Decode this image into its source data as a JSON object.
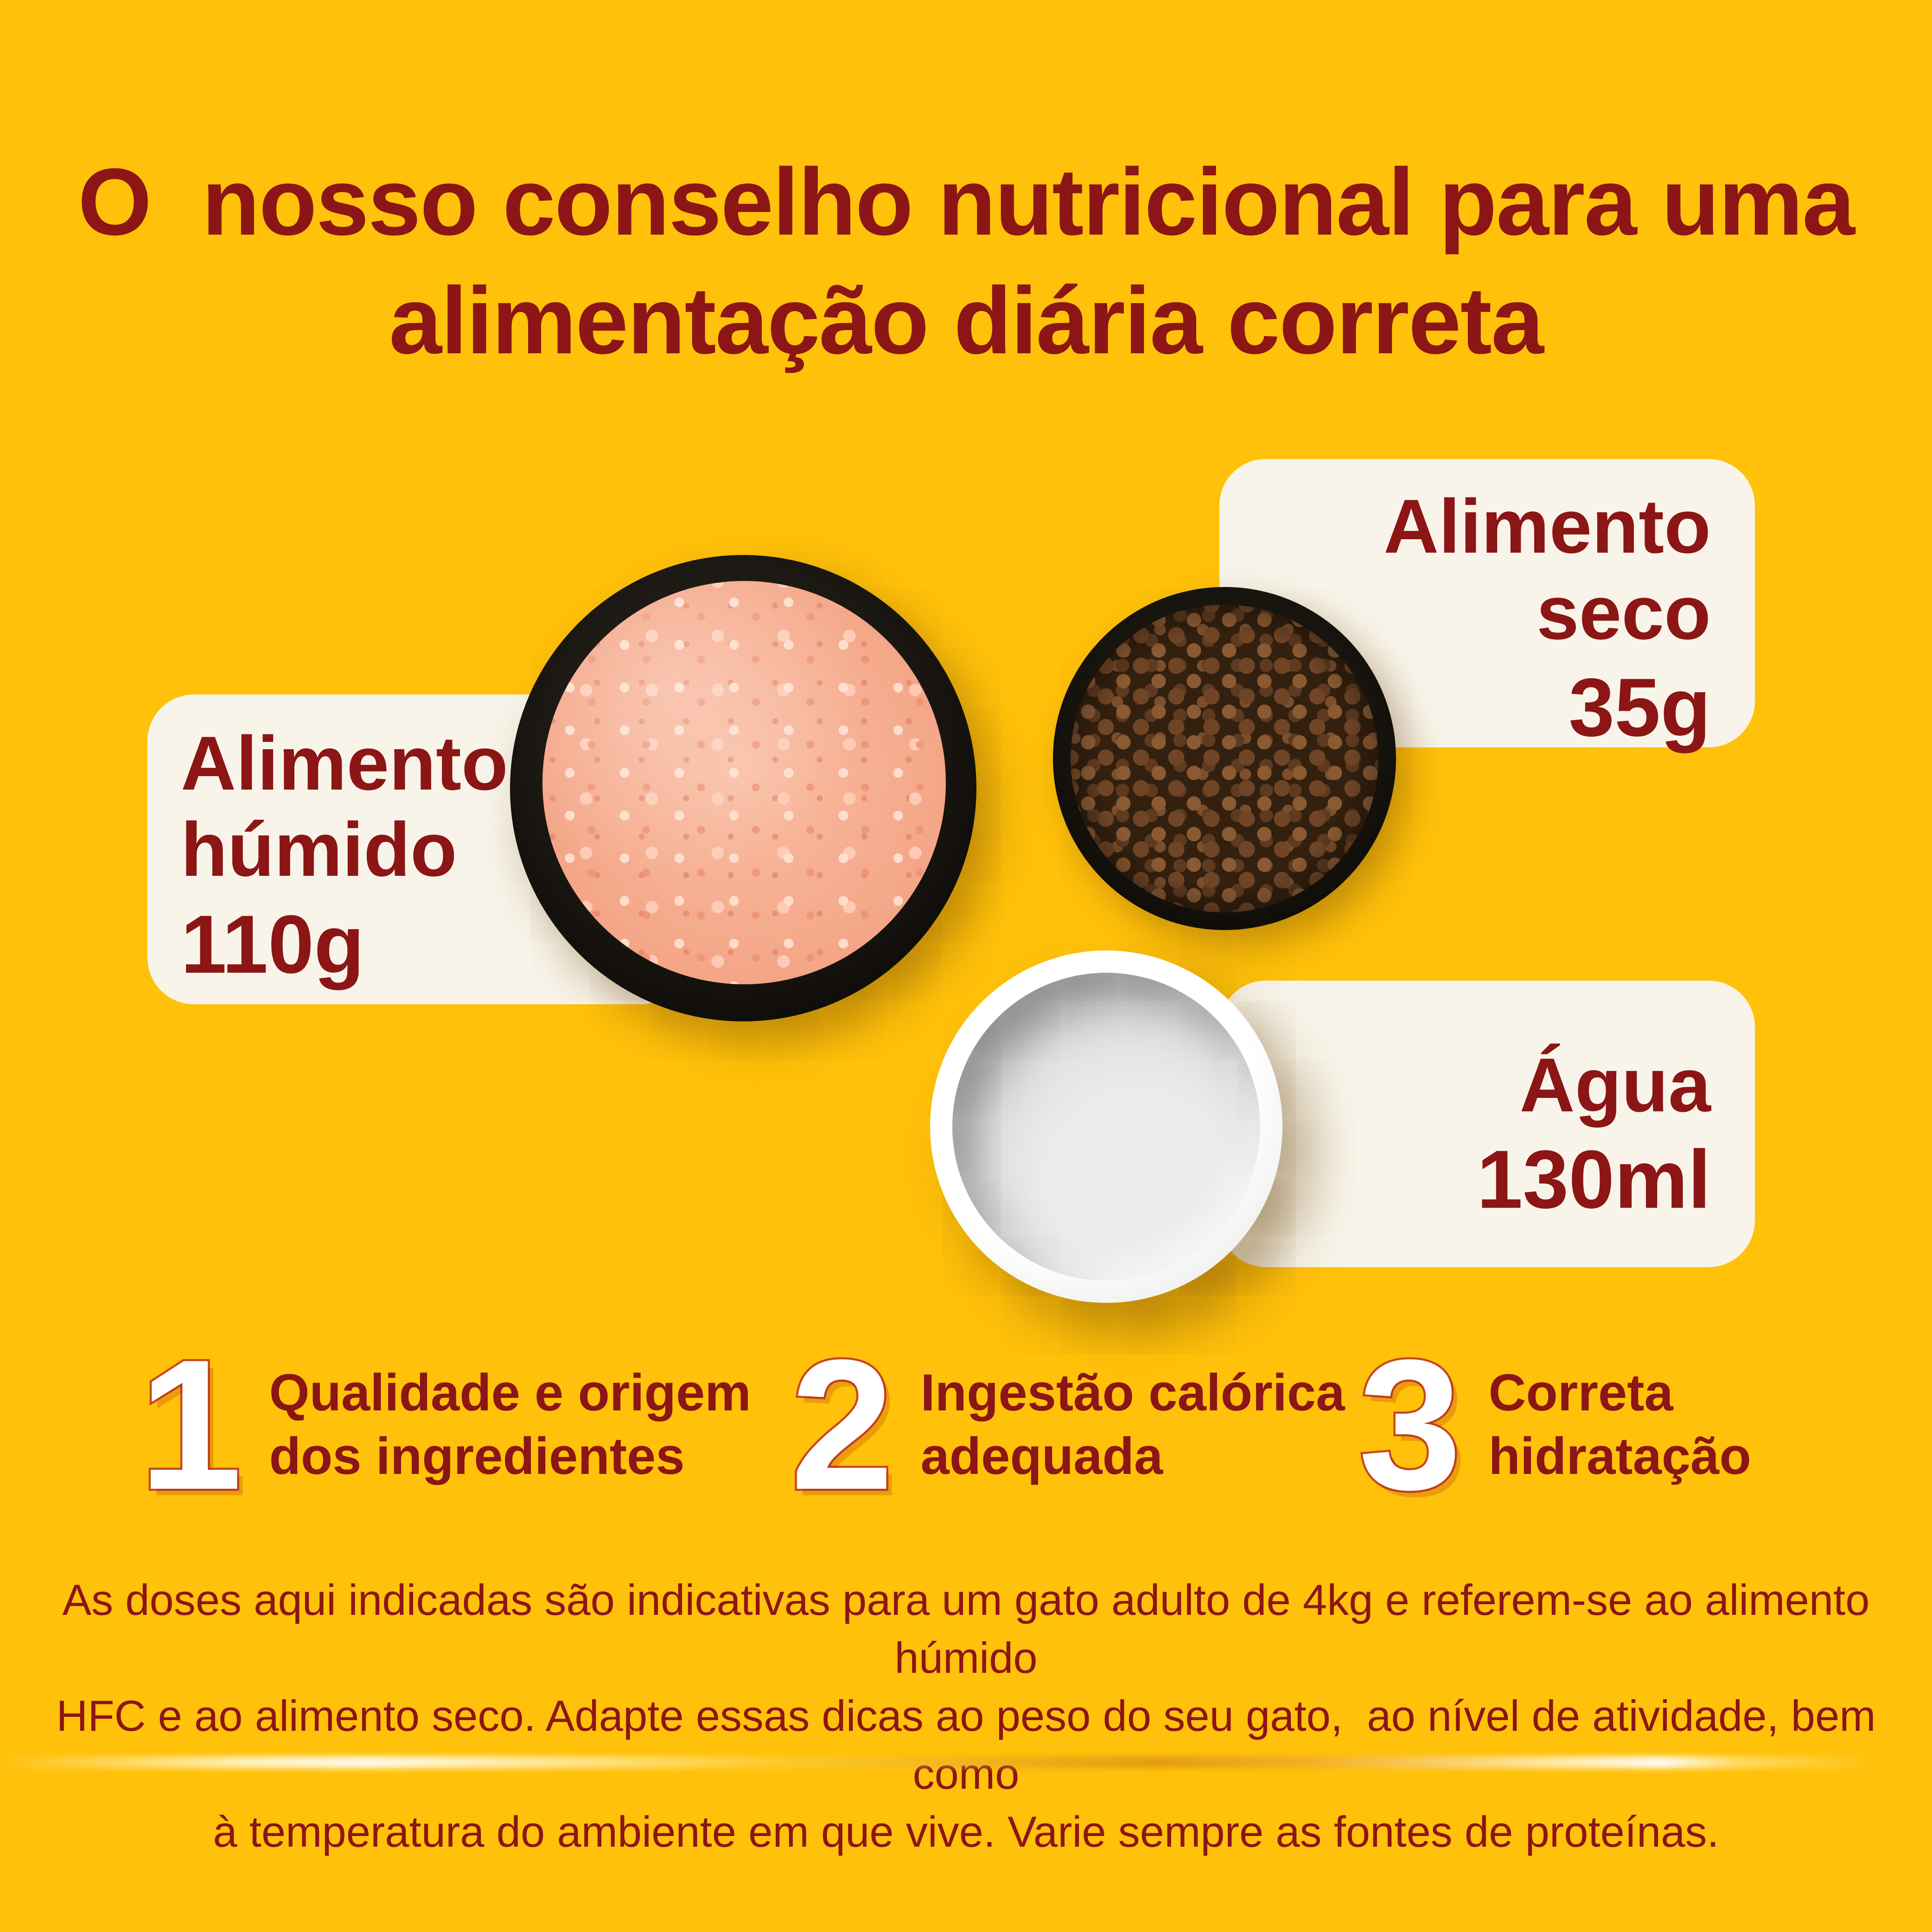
{
  "colors": {
    "background": "#FFC10A",
    "text_maroon": "#8C1515",
    "card_cream": "#F8F4E9",
    "step_number_fill": "#FFFFFF",
    "step_number_outline": "#C7481F",
    "wet_food_pink": "#F4A687",
    "kibble_brown": "#6F4526",
    "bowl_black": "#0F0D0A",
    "water_gray": "#D0D1D2"
  },
  "title": {
    "line1": "O  nosso conselho nutricional para uma",
    "line2": "alimentação diária correta"
  },
  "cards": {
    "humido": {
      "line1": "Alimento",
      "line2": "húmido",
      "amount": "110g"
    },
    "seco": {
      "line1": "Alimento",
      "line2": "seco",
      "amount": "35g"
    },
    "agua": {
      "line1": "Água",
      "amount": "130ml"
    }
  },
  "steps": [
    {
      "number": "1",
      "line1": "Qualidade e origem",
      "line2": "dos ingredientes"
    },
    {
      "number": "2",
      "line1": "Ingestão calórica",
      "line2": "adequada"
    },
    {
      "number": "3",
      "line1": "Correta",
      "line2": "hidratação"
    }
  ],
  "disclaimer": {
    "line1": "As doses aqui indicadas são indicativas para um gato adulto de 4kg e referem-se ao alimento húmido",
    "line2": "HFC e ao alimento seco. Adapte essas dicas ao peso do seu gato,  ao nível de atividade, bem como",
    "line3": "à temperatura do ambiente em que vive. Varie sempre as fontes de proteínas."
  }
}
